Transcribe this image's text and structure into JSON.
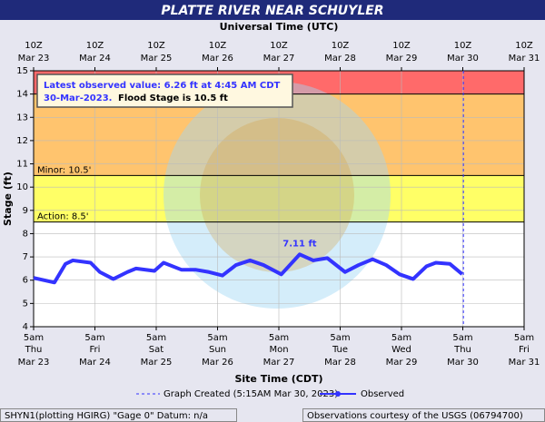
{
  "chart_data": {
    "type": "line",
    "title": "PLATTE RIVER NEAR SCHUYLER",
    "top_axis_label": "Universal Time (UTC)",
    "xlabel": "Site Time (CDT)",
    "ylabel": "Stage (ft)",
    "xlim": [
      0,
      8
    ],
    "ylim": [
      4,
      15
    ],
    "yticks": [
      4,
      5,
      6,
      7,
      8,
      9,
      10,
      11,
      12,
      13,
      14,
      15
    ],
    "xticks": [
      {
        "value": 0,
        "label": "5am",
        "day": "Thu",
        "date": "Mar 23"
      },
      {
        "value": 1,
        "label": "5am",
        "day": "Fri",
        "date": "Mar 24"
      },
      {
        "value": 2,
        "label": "5am",
        "day": "Sat",
        "date": "Mar 25"
      },
      {
        "value": 3,
        "label": "5am",
        "day": "Sun",
        "date": "Mar 26"
      },
      {
        "value": 4,
        "label": "5am",
        "day": "Mon",
        "date": "Mar 27"
      },
      {
        "value": 5,
        "label": "5am",
        "day": "Tue",
        "date": "Mar 28"
      },
      {
        "value": 6,
        "label": "5am",
        "day": "Wed",
        "date": "Mar 29"
      },
      {
        "value": 7,
        "label": "5am",
        "day": "Thu",
        "date": "Mar 30"
      },
      {
        "value": 8,
        "label": "5am",
        "day": "Fri",
        "date": "Mar 31"
      }
    ],
    "x2ticks": [
      {
        "value": 0,
        "label": "10Z",
        "date": "Mar 23"
      },
      {
        "value": 1,
        "label": "10Z",
        "date": "Mar 24"
      },
      {
        "value": 2,
        "label": "10Z",
        "date": "Mar 25"
      },
      {
        "value": 3,
        "label": "10Z",
        "date": "Mar 26"
      },
      {
        "value": 4,
        "label": "10Z",
        "date": "Mar 27"
      },
      {
        "value": 5,
        "label": "10Z",
        "date": "Mar 28"
      },
      {
        "value": 6,
        "label": "10Z",
        "date": "Mar 29"
      },
      {
        "value": 7,
        "label": "10Z",
        "date": "Mar 30"
      },
      {
        "value": 8,
        "label": "10Z",
        "date": "Mar 31"
      }
    ],
    "grid": true,
    "bands": [
      {
        "from": 8.5,
        "to": 10.5,
        "color": "#ffff66",
        "label": "Action: 8.5'"
      },
      {
        "from": 10.5,
        "to": 14,
        "color": "#ffc46e",
        "label": "Minor: 10.5'"
      },
      {
        "from": 14,
        "to": 15,
        "color": "#ff6a6a"
      }
    ],
    "x": [
      0,
      0.34,
      0.52,
      0.64,
      0.93,
      1.08,
      1.3,
      1.53,
      1.67,
      1.97,
      2.12,
      2.41,
      2.64,
      2.86,
      3.08,
      3.3,
      3.53,
      3.75,
      4.04,
      4.34,
      4.56,
      4.79,
      5.08,
      5.3,
      5.53,
      5.75,
      5.97,
      6.19,
      6.41,
      6.56,
      6.79,
      6.99
    ],
    "series": [
      {
        "name": "Observed",
        "color": "#3333ff",
        "values": [
          6.1,
          5.9,
          6.7,
          6.85,
          6.75,
          6.35,
          6.05,
          6.35,
          6.5,
          6.4,
          6.75,
          6.45,
          6.45,
          6.35,
          6.2,
          6.65,
          6.85,
          6.65,
          6.25,
          7.11,
          6.85,
          6.95,
          6.35,
          6.65,
          6.9,
          6.65,
          6.25,
          6.05,
          6.6,
          6.75,
          6.7,
          6.26
        ]
      }
    ],
    "peak_label": "7.11 ft",
    "created_x": 7.01,
    "created_label": "Graph Created (5:15AM Mar 30, 2023)",
    "annotation": {
      "line1": "Latest observed value: 6.26 ft at 4:45 AM CDT",
      "date": "30-Mar-2023.",
      "flood": "Flood Stage is 10.5 ft"
    },
    "footer_left": "SHYN1(plotting HGIRG) \"Gage 0\" Datum: n/a",
    "footer_right": "Observations courtesy of the USGS (06794700)"
  }
}
